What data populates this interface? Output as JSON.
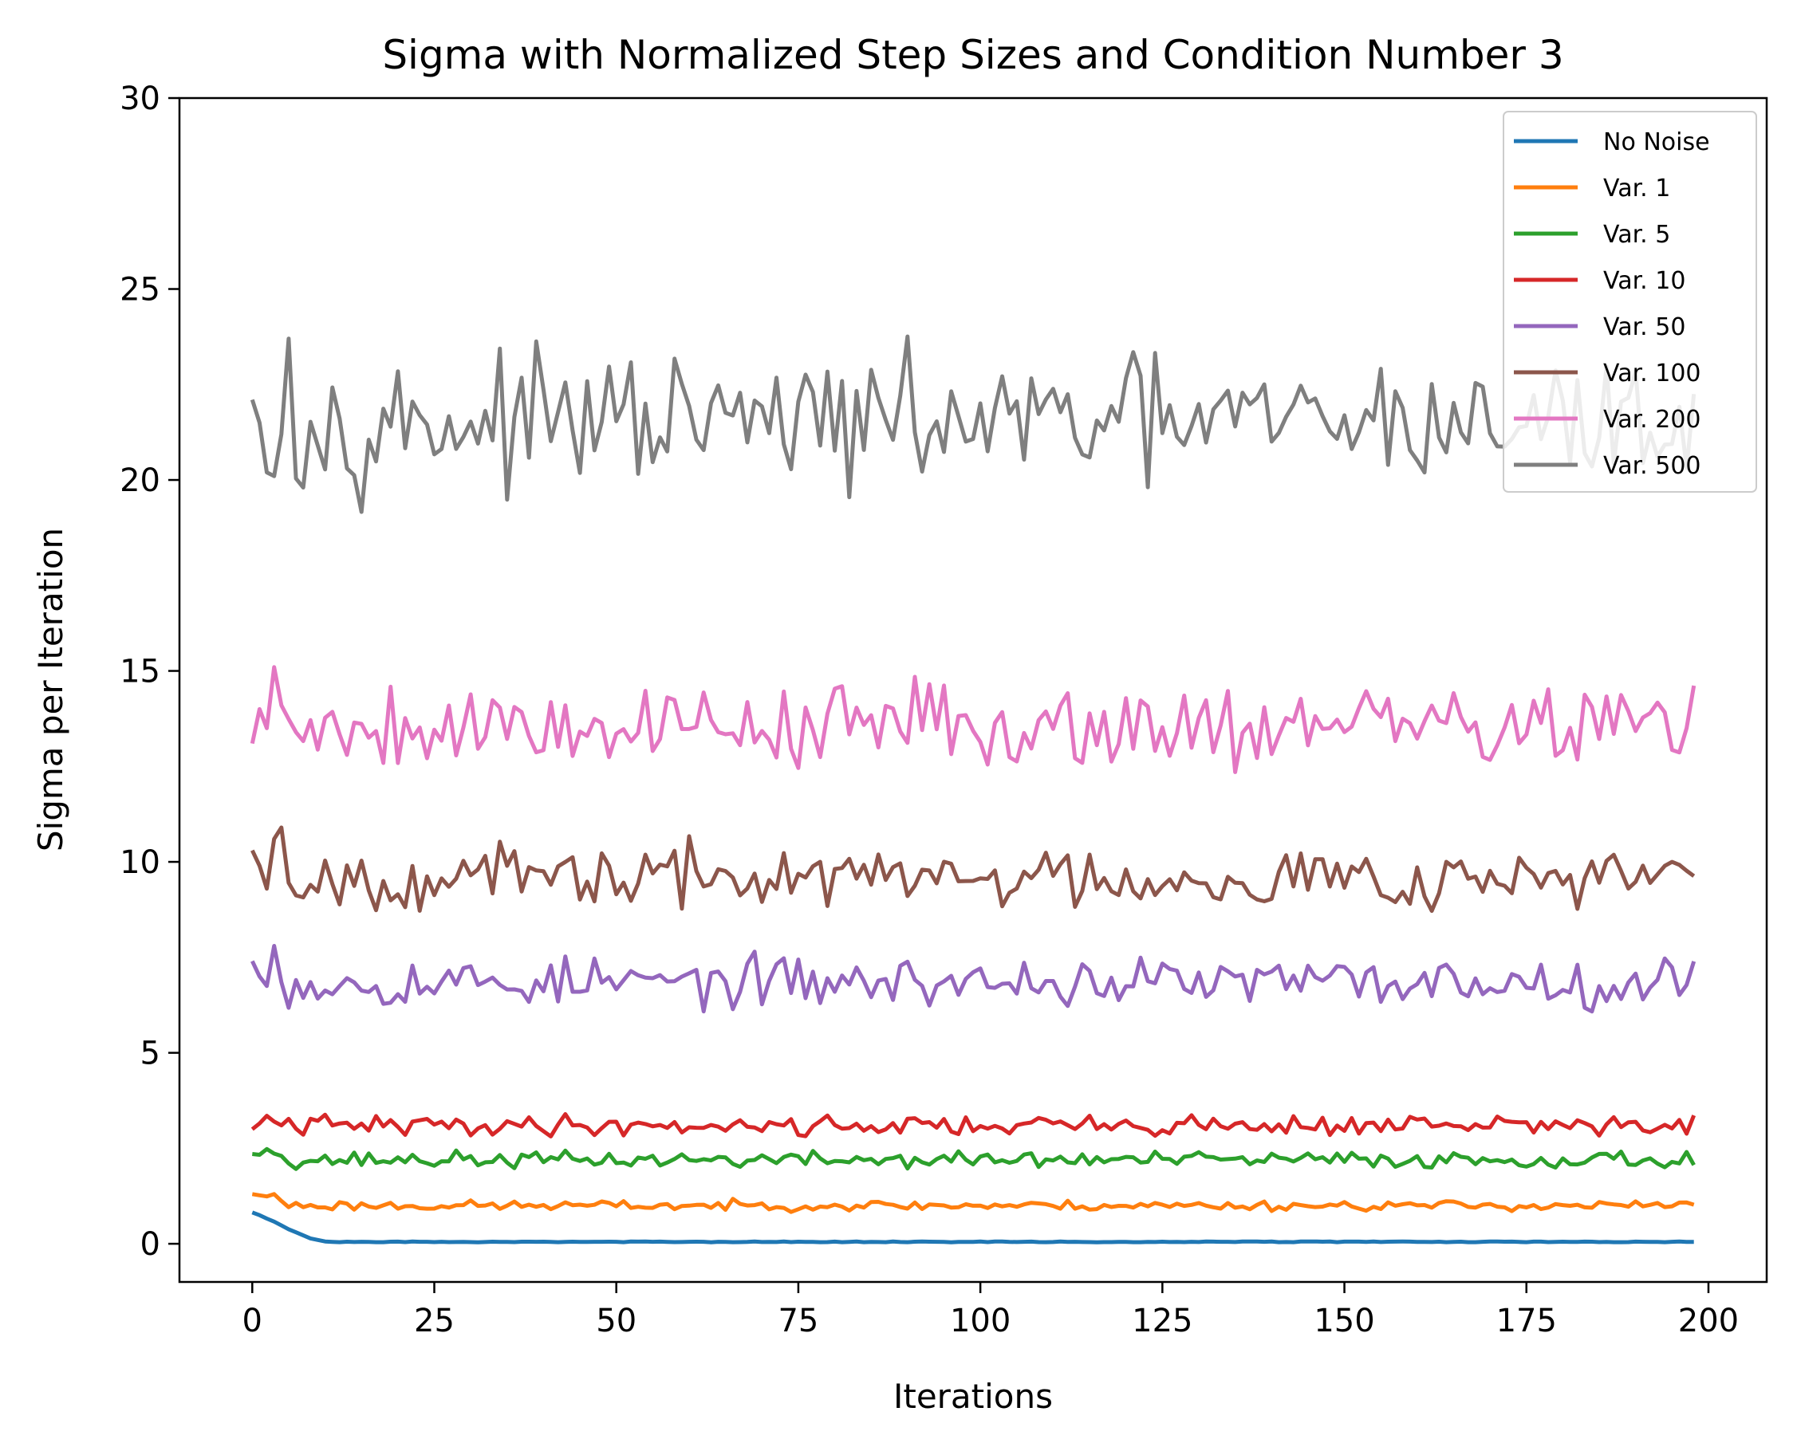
{
  "chart_data": {
    "type": "line",
    "title": "Sigma with Normalized Step Sizes and Condition Number 3",
    "xlabel": "Iterations",
    "ylabel": "Sigma per Iteration",
    "xlim": [
      -10,
      208
    ],
    "ylim": [
      -1,
      30
    ],
    "x_ticks": [
      0,
      25,
      50,
      75,
      100,
      125,
      150,
      175,
      200
    ],
    "y_ticks": [
      0,
      5,
      10,
      15,
      20,
      25,
      30
    ],
    "x_tick_labels": [
      "0",
      "25",
      "50",
      "75",
      "100",
      "125",
      "150",
      "175",
      "200"
    ],
    "y_tick_labels": [
      "0",
      "5",
      "10",
      "15",
      "20",
      "25",
      "30"
    ],
    "grid": false,
    "legend_position": "top-right",
    "n_points": 199,
    "series": [
      {
        "name": "No Noise",
        "color": "#1f77b4",
        "base": 0.05,
        "amp": 0.02,
        "seed": 11,
        "start": [
          0.82,
          0.75,
          0.66,
          0.58,
          0.48,
          0.38,
          0.3,
          0.22,
          0.14,
          0.1,
          0.06,
          0.05
        ]
      },
      {
        "name": "Var. 1",
        "color": "#ff7f0e",
        "base": 1.0,
        "amp": 0.12,
        "seed": 23,
        "start": [
          1.3,
          1.27,
          1.24,
          1.3,
          1.12
        ]
      },
      {
        "name": "Var. 5",
        "color": "#2ca02c",
        "base": 2.2,
        "amp": 0.2,
        "seed": 37,
        "start": [
          2.35,
          2.33,
          2.48,
          2.36,
          2.3
        ]
      },
      {
        "name": "Var. 10",
        "color": "#d62728",
        "base": 3.1,
        "amp": 0.25,
        "seed": 41,
        "start": [
          3.0,
          3.15,
          3.35,
          3.2,
          3.1
        ]
      },
      {
        "name": "Var. 50",
        "color": "#9467bd",
        "base": 6.85,
        "amp": 0.6,
        "seed": 53,
        "start": [
          7.4,
          7.0,
          6.75,
          7.8,
          6.85
        ]
      },
      {
        "name": "Var. 100",
        "color": "#8c564b",
        "base": 9.6,
        "amp": 0.75,
        "seed": 67,
        "start": [
          10.3,
          9.9,
          9.3,
          10.6,
          10.9
        ]
      },
      {
        "name": "Var. 200",
        "color": "#e377c2",
        "base": 13.6,
        "amp": 1.05,
        "seed": 79,
        "start": [
          13.1,
          14.0,
          13.5,
          15.1,
          14.1
        ]
      },
      {
        "name": "Var. 500",
        "color": "#7f7f7f",
        "base": 21.5,
        "amp": 1.5,
        "seed": 97,
        "start": [
          22.1,
          21.5,
          20.2,
          20.1,
          21.2,
          23.7
        ]
      }
    ]
  }
}
